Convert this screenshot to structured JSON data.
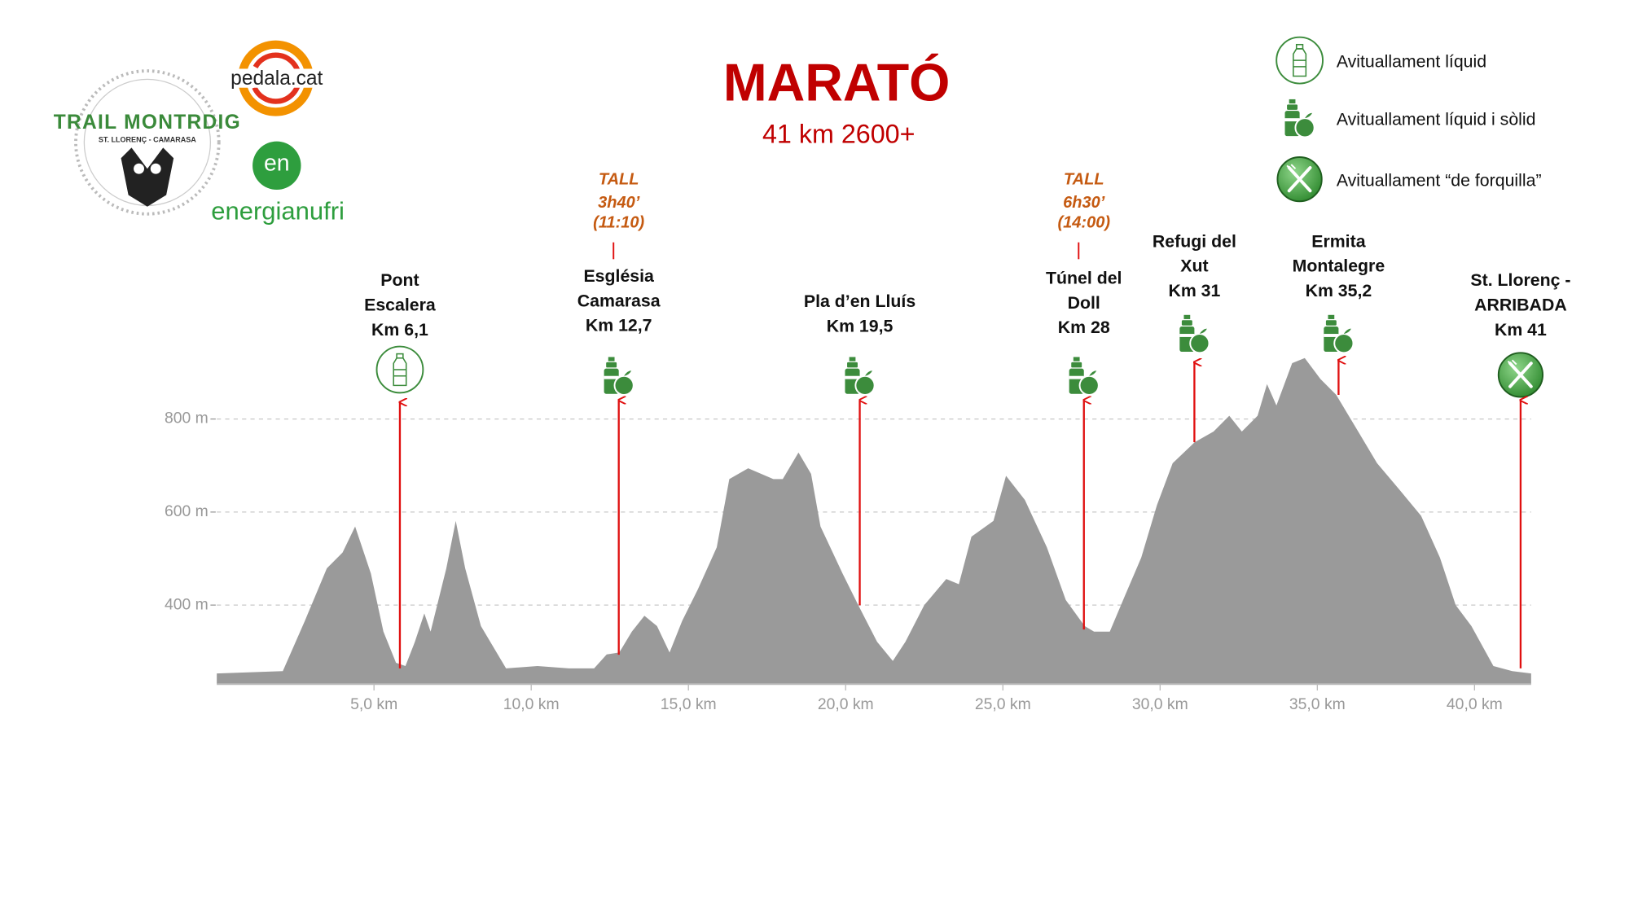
{
  "chart_data": {
    "type": "area",
    "title": "MARATÓ",
    "subtitle": "41 km 2600+",
    "color": "#9a9a9a",
    "grid": true,
    "x": [
      0,
      2.1,
      2.8,
      3.5,
      4.0,
      4.4,
      4.9,
      5.3,
      5.7,
      6.0,
      6.3,
      6.6,
      6.8,
      7.3,
      7.6,
      7.9,
      8.4,
      9.2,
      10.2,
      11.2,
      12.0,
      12.4,
      12.8,
      13.2,
      13.6,
      14.0,
      14.4,
      14.8,
      15.3,
      15.9,
      16.3,
      16.9,
      17.7,
      18.0,
      18.5,
      18.9,
      19.2,
      19.9,
      20.4,
      21.0,
      21.5,
      21.9,
      22.5,
      23.2,
      23.6,
      24.0,
      24.7,
      25.1,
      25.7,
      26.4,
      27.0,
      27.6,
      27.9,
      28.4,
      28.9,
      29.4,
      29.9,
      30.4,
      31.1,
      31.7,
      32.2,
      32.6,
      33.1,
      33.4,
      33.7,
      34.2,
      34.6,
      35.1,
      35.6,
      36.3,
      36.9,
      37.6,
      38.3,
      38.9,
      39.4,
      39.9,
      40.6,
      41.2,
      41.8
    ],
    "values": [
      253,
      258,
      366,
      479,
      513,
      569,
      468,
      343,
      276,
      269,
      321,
      382,
      343,
      479,
      581,
      479,
      355,
      264,
      269,
      264,
      264,
      294,
      298,
      343,
      377,
      355,
      298,
      366,
      434,
      524,
      671,
      694,
      671,
      671,
      728,
      682,
      569,
      468,
      400,
      321,
      280,
      321,
      400,
      456,
      445,
      547,
      581,
      678,
      626,
      524,
      411,
      355,
      343,
      343,
      423,
      502,
      615,
      705,
      750,
      773,
      807,
      773,
      807,
      875,
      829,
      920,
      931,
      886,
      852,
      773,
      705,
      649,
      592,
      502,
      400,
      355,
      269,
      258,
      253
    ],
    "xlim": [
      0,
      41.8
    ],
    "ylim": [
      230,
      1000
    ],
    "xticks": [
      {
        "value": 5,
        "label": "5,0 km"
      },
      {
        "value": 10,
        "label": "10,0 km"
      },
      {
        "value": 15,
        "label": "15,0 km"
      },
      {
        "value": 20,
        "label": "20,0 km"
      },
      {
        "value": 25,
        "label": "25,0 km"
      },
      {
        "value": 30,
        "label": "30,0 km"
      },
      {
        "value": 35,
        "label": "35,0 km"
      },
      {
        "value": 40,
        "label": "40,0 km"
      }
    ],
    "yticks": [
      {
        "value": 400,
        "label": "400 m"
      },
      {
        "value": 600,
        "label": "600 m"
      },
      {
        "value": 800,
        "label": "800 m"
      }
    ],
    "checkpoints": [
      {
        "lines": [
          "Pont",
          "Escalera",
          "Km 6,1"
        ],
        "icon": "liquid"
      },
      {
        "lines": [
          "Església",
          "Camarasa",
          "Km 12,7"
        ],
        "icon": "solid",
        "cutoff": [
          "TALL",
          "3h40’",
          "(11:10)"
        ]
      },
      {
        "lines": [
          "Pla d’en Lluís",
          "Km 19,5"
        ],
        "icon": "solid"
      },
      {
        "lines": [
          "Túnel del",
          "Doll",
          "Km 28"
        ],
        "icon": "solid",
        "cutoff": [
          "TALL",
          "6h30’",
          "(14:00)"
        ]
      },
      {
        "lines": [
          "Refugi del",
          "Xut",
          "Km 31"
        ],
        "icon": "solid"
      },
      {
        "lines": [
          "Ermita",
          "Montalegre",
          "Km 35,2"
        ],
        "icon": "solid"
      },
      {
        "lines": [
          "St. Llorenç -",
          "ARRIBADA",
          "Km 41"
        ],
        "icon": "fork"
      }
    ],
    "legend": [
      {
        "label": "Avituallament líquid",
        "icon": "liquid"
      },
      {
        "label": "Avituallament líquid i sòlid",
        "icon": "solid"
      },
      {
        "label": "Avituallament “de forquilla”",
        "icon": "fork"
      }
    ]
  },
  "logos": {
    "trail": "TRAIL MONTRDIG",
    "trail_sub": "ST. LLORENÇ - CAMARASA",
    "pedala": "pedala.cat",
    "energia_mark": "en",
    "energia": "energianufri"
  }
}
